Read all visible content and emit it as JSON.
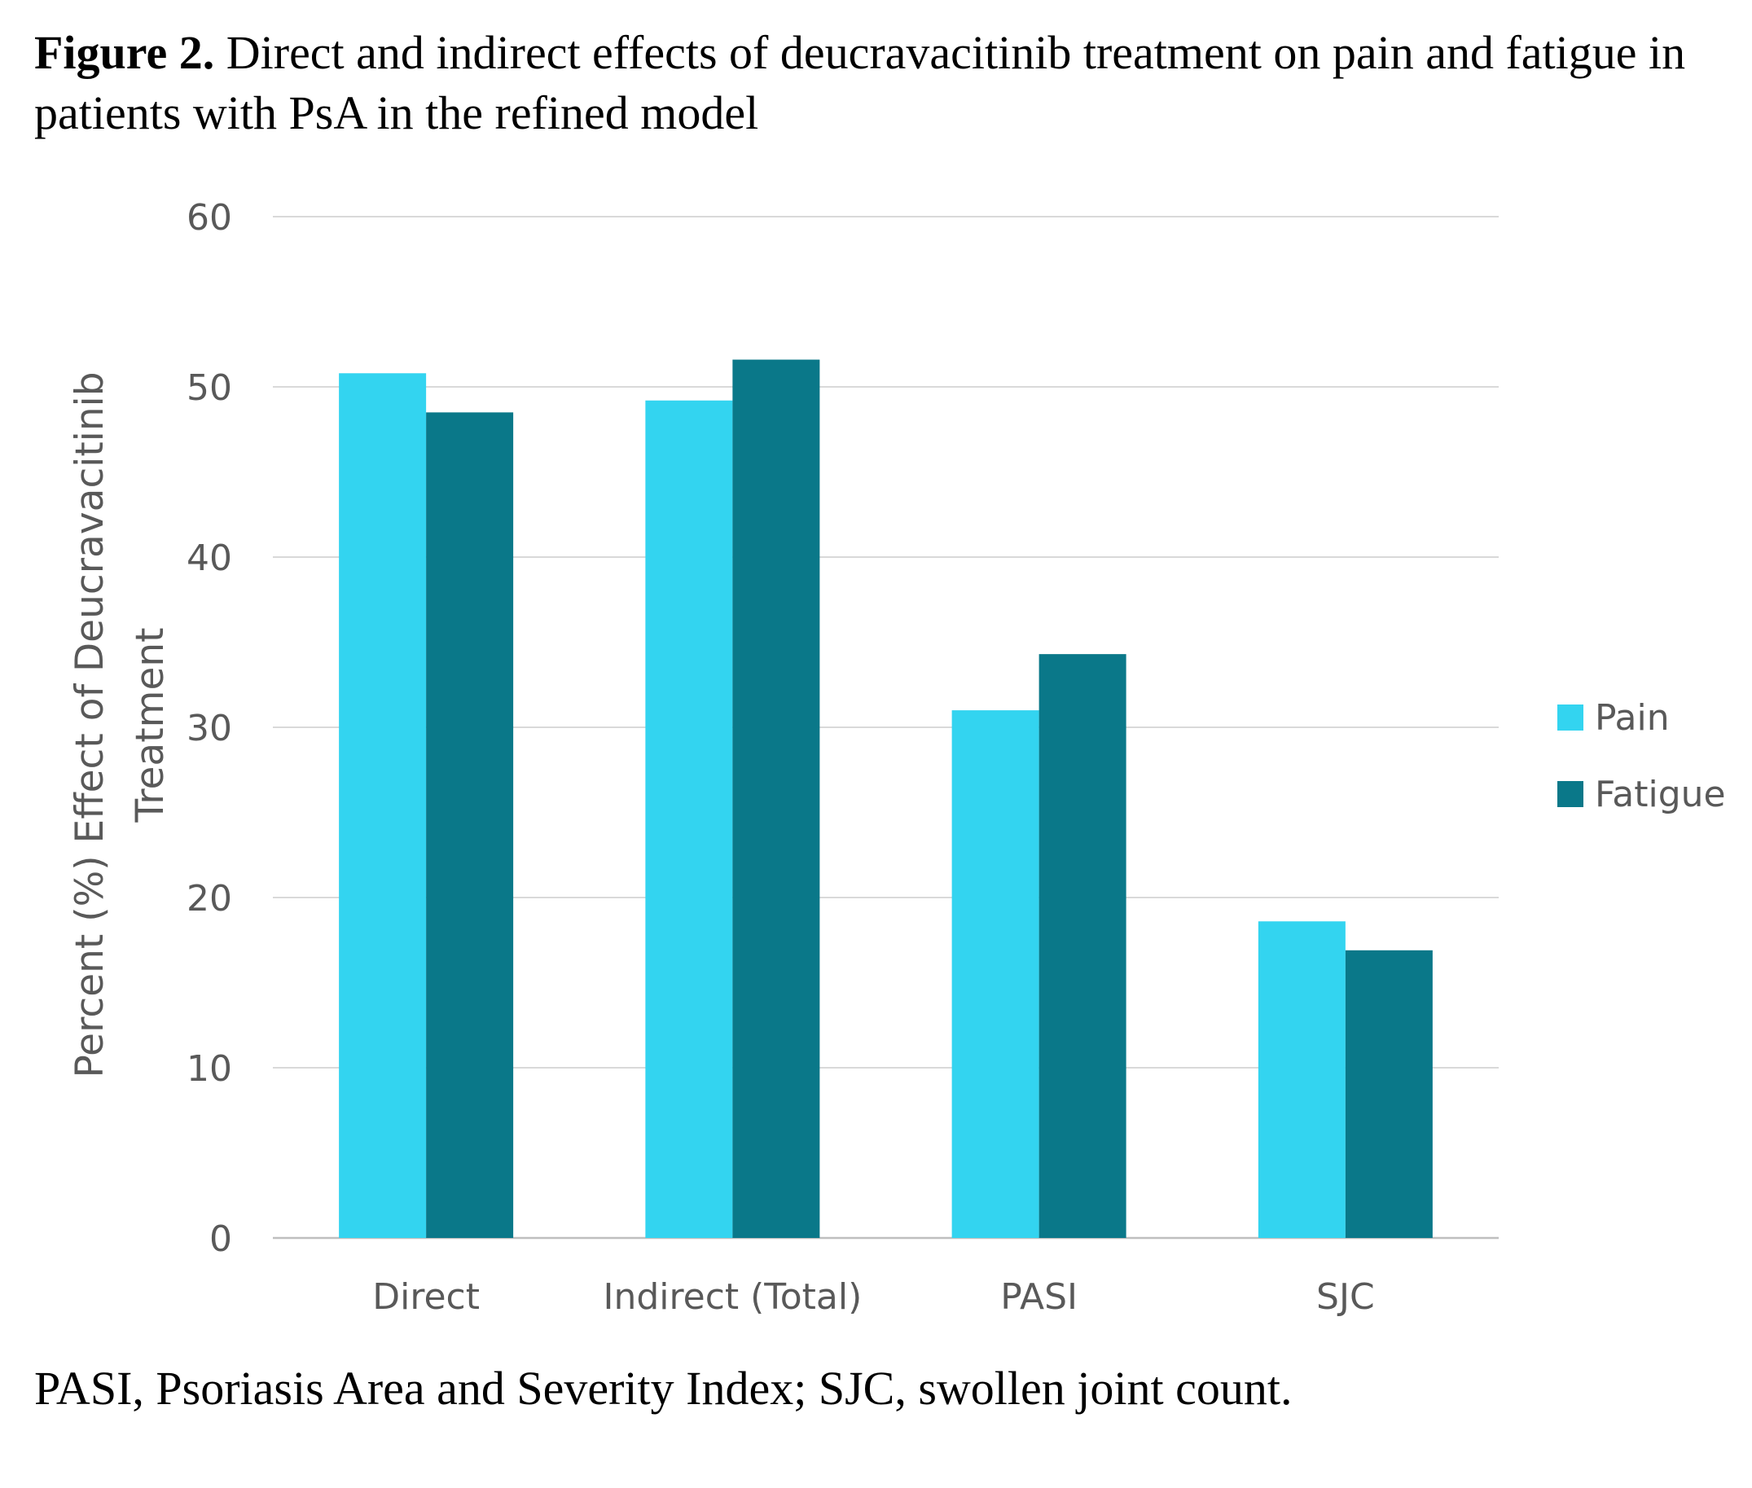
{
  "figure": {
    "label": "Figure 2.",
    "caption": "Direct and indirect effects of deucravacitinib treatment on pain and fatigue in patients with PsA in the refined model",
    "footnote": "PASI, Psoriasis Area and Severity Index; SJC, swollen joint count."
  },
  "chart_data": {
    "type": "bar",
    "categories": [
      "Direct",
      "Indirect (Total)",
      "PASI",
      "SJC"
    ],
    "series": [
      {
        "name": "Pain",
        "color": "#33d4f0",
        "values": [
          50.8,
          49.2,
          31.0,
          18.6
        ]
      },
      {
        "name": "Fatigue",
        "color": "#0a7889",
        "values": [
          48.5,
          51.6,
          34.3,
          16.9
        ]
      }
    ],
    "ylabel_line1": "Percent (%) Effect of Deucravacitinib",
    "ylabel_line2": "Treatment",
    "ylim": [
      0,
      60
    ],
    "yticks": [
      0,
      10,
      20,
      30,
      40,
      50,
      60
    ],
    "grid": true,
    "legend_position": "right"
  }
}
